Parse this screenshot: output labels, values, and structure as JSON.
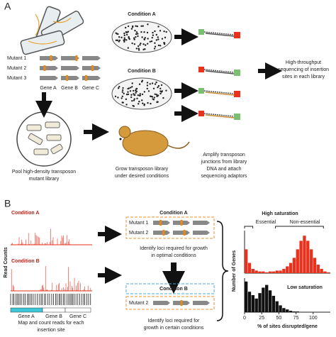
{
  "panel_a": {
    "label": "A",
    "mutants": [
      "Mutant 1",
      "Mutant 2",
      "Mutant 3"
    ],
    "genes": [
      "Gene A",
      "Gene B",
      "Gene C"
    ],
    "condition_a": "Condition A",
    "condition_b": "Condition B",
    "pool_text": [
      "Pool high-density transposon",
      "mutant library"
    ],
    "grow_text": [
      "Grow transposon library",
      "under desired conditions"
    ],
    "amplify_text": [
      "Amplify transposon",
      "junctions from library",
      "DNA and attach",
      "sequencing adaptors"
    ],
    "output_text": [
      "High-throughput",
      "sequencing of insertion",
      "sites in each library"
    ]
  },
  "panel_b": {
    "label": "B",
    "condition_a": "Condition A",
    "condition_b": "Condition B",
    "y_axis": "Read Counts",
    "genes": [
      "Gene A",
      "Gene B",
      "Gene C"
    ],
    "map_text": [
      "Map and count reads for each",
      "insertion site"
    ],
    "middle_condition_a": "Condition A",
    "middle_condition_b": "Condition B",
    "mutants": [
      "Mutant 1",
      "Mutant 2"
    ],
    "mutant_b": "Mutant 2",
    "optimal_text": [
      "Identify loci required for growth",
      "in optimal conditions"
    ],
    "certain_text": [
      "Identify loci required for",
      "growth in certain conditions"
    ]
  },
  "chart_data": [
    {
      "type": "histogram",
      "title": "High saturation",
      "color": "#e8321e",
      "annotations": [
        "Essential",
        "Non-essential"
      ],
      "y_label": "Number of Genes",
      "bins": [
        0,
        5,
        10,
        15,
        20,
        25,
        30,
        35,
        40,
        45,
        50,
        55,
        60,
        65,
        70,
        75,
        80,
        85,
        90,
        95,
        100,
        105,
        110,
        115,
        120,
        125
      ],
      "values": [
        28,
        12,
        5,
        3,
        2,
        2,
        1,
        2,
        2,
        3,
        3,
        5,
        8,
        12,
        18,
        28,
        38,
        44,
        38,
        28,
        18,
        10,
        5,
        2,
        1
      ],
      "xlim": [
        0,
        125
      ],
      "ylim": [
        0,
        50
      ]
    },
    {
      "type": "histogram",
      "title": "Low saturation",
      "color": "#111111",
      "x_label": "% of sites disrupted/gene",
      "bins": [
        0,
        5,
        10,
        15,
        20,
        25,
        30,
        35,
        40,
        45,
        50,
        55,
        60,
        65,
        70,
        75,
        80,
        85,
        90,
        95,
        100,
        105,
        110,
        115,
        120,
        125
      ],
      "values": [
        45,
        30,
        25,
        20,
        28,
        36,
        40,
        32,
        24,
        16,
        10,
        6,
        4,
        2,
        1,
        1,
        0,
        0,
        0,
        0,
        0,
        0,
        0,
        0,
        0
      ],
      "xlim": [
        0,
        125
      ],
      "ylim": [
        0,
        50
      ],
      "xticks": [
        0,
        25,
        50,
        75,
        100
      ]
    }
  ]
}
